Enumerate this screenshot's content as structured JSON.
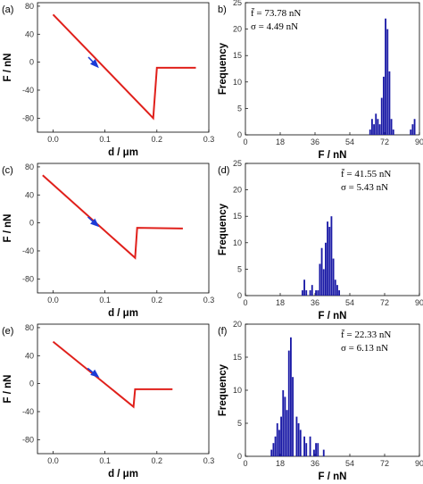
{
  "chart_data": [
    {
      "id": "a",
      "type": "line",
      "panel_label": "(a)",
      "xlabel": "d / μm",
      "ylabel": "F / nN",
      "xlim": [
        -0.03,
        0.3
      ],
      "ylim": [
        -100,
        85
      ],
      "xticks": [
        "0.0",
        "0.1",
        "0.2",
        "0.3"
      ],
      "xtick_values": [
        0,
        0.1,
        0.2,
        0.3
      ],
      "yticks": [
        "80",
        "40",
        "0",
        "-40",
        "-80"
      ],
      "ytick_values": [
        80,
        40,
        0,
        -40,
        -80
      ],
      "line_color": "#e0201b",
      "points": [
        [
          0.0,
          68
        ],
        [
          0.193,
          -80
        ],
        [
          0.2,
          -8
        ],
        [
          0.275,
          -8
        ]
      ],
      "arrow": {
        "at": [
          0.08,
          -2
        ],
        "direction": "down-right",
        "color": "#1c3bd6"
      }
    },
    {
      "id": "b",
      "type": "bar",
      "panel_label": "b)",
      "xlabel": "F / nN",
      "ylabel": "Frequency",
      "xlim": [
        0,
        90
      ],
      "ylim": [
        0,
        25
      ],
      "xticks": [
        "0",
        "18",
        "36",
        "54",
        "72",
        "90"
      ],
      "xtick_values": [
        0,
        18,
        36,
        54,
        72,
        90
      ],
      "yticks": [
        "0",
        "5",
        "10",
        "15",
        "20",
        "25"
      ],
      "ytick_values": [
        0,
        5,
        10,
        15,
        20,
        25
      ],
      "bar_color": "#1a1aa6",
      "annotation_mean": "f̄ = 73.78 nN",
      "annotation_sigma": "σ = 4.49 nN",
      "bins": [
        [
          64.5,
          1
        ],
        [
          65.5,
          3
        ],
        [
          66.5,
          2
        ],
        [
          67.5,
          4
        ],
        [
          68.5,
          3
        ],
        [
          69.5,
          2
        ],
        [
          70.5,
          7
        ],
        [
          71.5,
          11
        ],
        [
          72.5,
          22
        ],
        [
          73.5,
          20
        ],
        [
          74.5,
          12
        ],
        [
          75.5,
          3
        ],
        [
          76.5,
          1
        ],
        [
          85.5,
          1
        ],
        [
          86.5,
          2
        ],
        [
          87.5,
          3
        ]
      ]
    },
    {
      "id": "c",
      "type": "line",
      "panel_label": "(c)",
      "xlabel": "d / μm",
      "ylabel": "F / nN",
      "xlim": [
        -0.03,
        0.3
      ],
      "ylim": [
        -100,
        85
      ],
      "xticks": [
        "0.0",
        "0.1",
        "0.2",
        "0.3"
      ],
      "xtick_values": [
        0,
        0.1,
        0.2,
        0.3
      ],
      "yticks": [
        "80",
        "40",
        "0",
        "-40",
        "-80"
      ],
      "ytick_values": [
        80,
        40,
        0,
        -40,
        -80
      ],
      "line_color": "#e0201b",
      "points": [
        [
          -0.02,
          68
        ],
        [
          0.158,
          -50
        ],
        [
          0.162,
          -7
        ],
        [
          0.25,
          -8
        ]
      ],
      "arrow": {
        "at": [
          0.08,
          0
        ],
        "direction": "down-right",
        "color": "#1c3bd6"
      }
    },
    {
      "id": "d",
      "type": "bar",
      "panel_label": "(d)",
      "xlabel": "F / nN",
      "ylabel": "Frequency",
      "xlim": [
        0,
        90
      ],
      "ylim": [
        0,
        25
      ],
      "xticks": [
        "0",
        "18",
        "36",
        "54",
        "72",
        "90"
      ],
      "xtick_values": [
        0,
        18,
        36,
        54,
        72,
        90
      ],
      "yticks": [
        "0",
        "5",
        "10",
        "15",
        "20",
        "25"
      ],
      "ytick_values": [
        0,
        5,
        10,
        15,
        20,
        25
      ],
      "bar_color": "#1a1aa6",
      "annotation_mean": "f̄ = 41.55 nN",
      "annotation_sigma": "σ = 5.43 nN",
      "bins": [
        [
          29.5,
          1
        ],
        [
          30.5,
          3
        ],
        [
          31.5,
          1
        ],
        [
          33.5,
          1
        ],
        [
          34.5,
          2
        ],
        [
          36.5,
          1
        ],
        [
          37.5,
          1
        ],
        [
          38.5,
          6
        ],
        [
          39.5,
          9
        ],
        [
          40.5,
          5
        ],
        [
          41.5,
          10
        ],
        [
          42.5,
          14
        ],
        [
          43.5,
          13
        ],
        [
          44.5,
          15
        ],
        [
          45.5,
          7
        ],
        [
          46.5,
          3
        ],
        [
          47.5,
          2
        ],
        [
          48.5,
          1
        ]
      ]
    },
    {
      "id": "e",
      "type": "line",
      "panel_label": "(e)",
      "xlabel": "d / μm",
      "ylabel": "F / nN",
      "xlim": [
        -0.03,
        0.3
      ],
      "ylim": [
        -100,
        85
      ],
      "xticks": [
        "0.0",
        "0.1",
        "0.2",
        "0.3"
      ],
      "xtick_values": [
        0,
        0.1,
        0.2,
        0.3
      ],
      "yticks": [
        "80",
        "40",
        "0",
        "-40",
        "-80"
      ],
      "ytick_values": [
        80,
        40,
        0,
        -40,
        -80
      ],
      "line_color": "#e0201b",
      "points": [
        [
          0.0,
          60
        ],
        [
          0.155,
          -33
        ],
        [
          0.158,
          -8
        ],
        [
          0.23,
          -8
        ]
      ],
      "arrow": {
        "at": [
          0.08,
          14
        ],
        "direction": "down-right",
        "color": "#1c3bd6"
      }
    },
    {
      "id": "f",
      "type": "bar",
      "panel_label": "(f)",
      "xlabel": "F / nN",
      "ylabel": "Frequency",
      "xlim": [
        0,
        90
      ],
      "ylim": [
        0,
        20
      ],
      "xticks": [
        "0",
        "18",
        "36",
        "54",
        "72",
        "90"
      ],
      "xtick_values": [
        0,
        18,
        36,
        54,
        72,
        90
      ],
      "yticks": [
        "0",
        "5",
        "10",
        "15",
        "20"
      ],
      "ytick_values": [
        0,
        5,
        10,
        15,
        20
      ],
      "bar_color": "#1a1aa6",
      "annotation_mean": "f̄ = 22.33 nN",
      "annotation_sigma": "σ = 6.13 nN",
      "bins": [
        [
          13.5,
          1
        ],
        [
          14.5,
          2
        ],
        [
          15.5,
          3
        ],
        [
          16.5,
          5
        ],
        [
          17.5,
          4
        ],
        [
          18.5,
          6
        ],
        [
          19.5,
          10
        ],
        [
          20.5,
          9
        ],
        [
          21.5,
          7
        ],
        [
          22.5,
          16
        ],
        [
          23.5,
          18
        ],
        [
          24.5,
          12
        ],
        [
          26.5,
          6
        ],
        [
          27.5,
          5
        ],
        [
          28.5,
          4
        ],
        [
          30.5,
          3
        ],
        [
          31.5,
          2
        ],
        [
          33.5,
          3
        ],
        [
          35.5,
          1
        ],
        [
          36.5,
          2
        ],
        [
          37.5,
          2
        ],
        [
          40.5,
          1
        ]
      ]
    }
  ]
}
